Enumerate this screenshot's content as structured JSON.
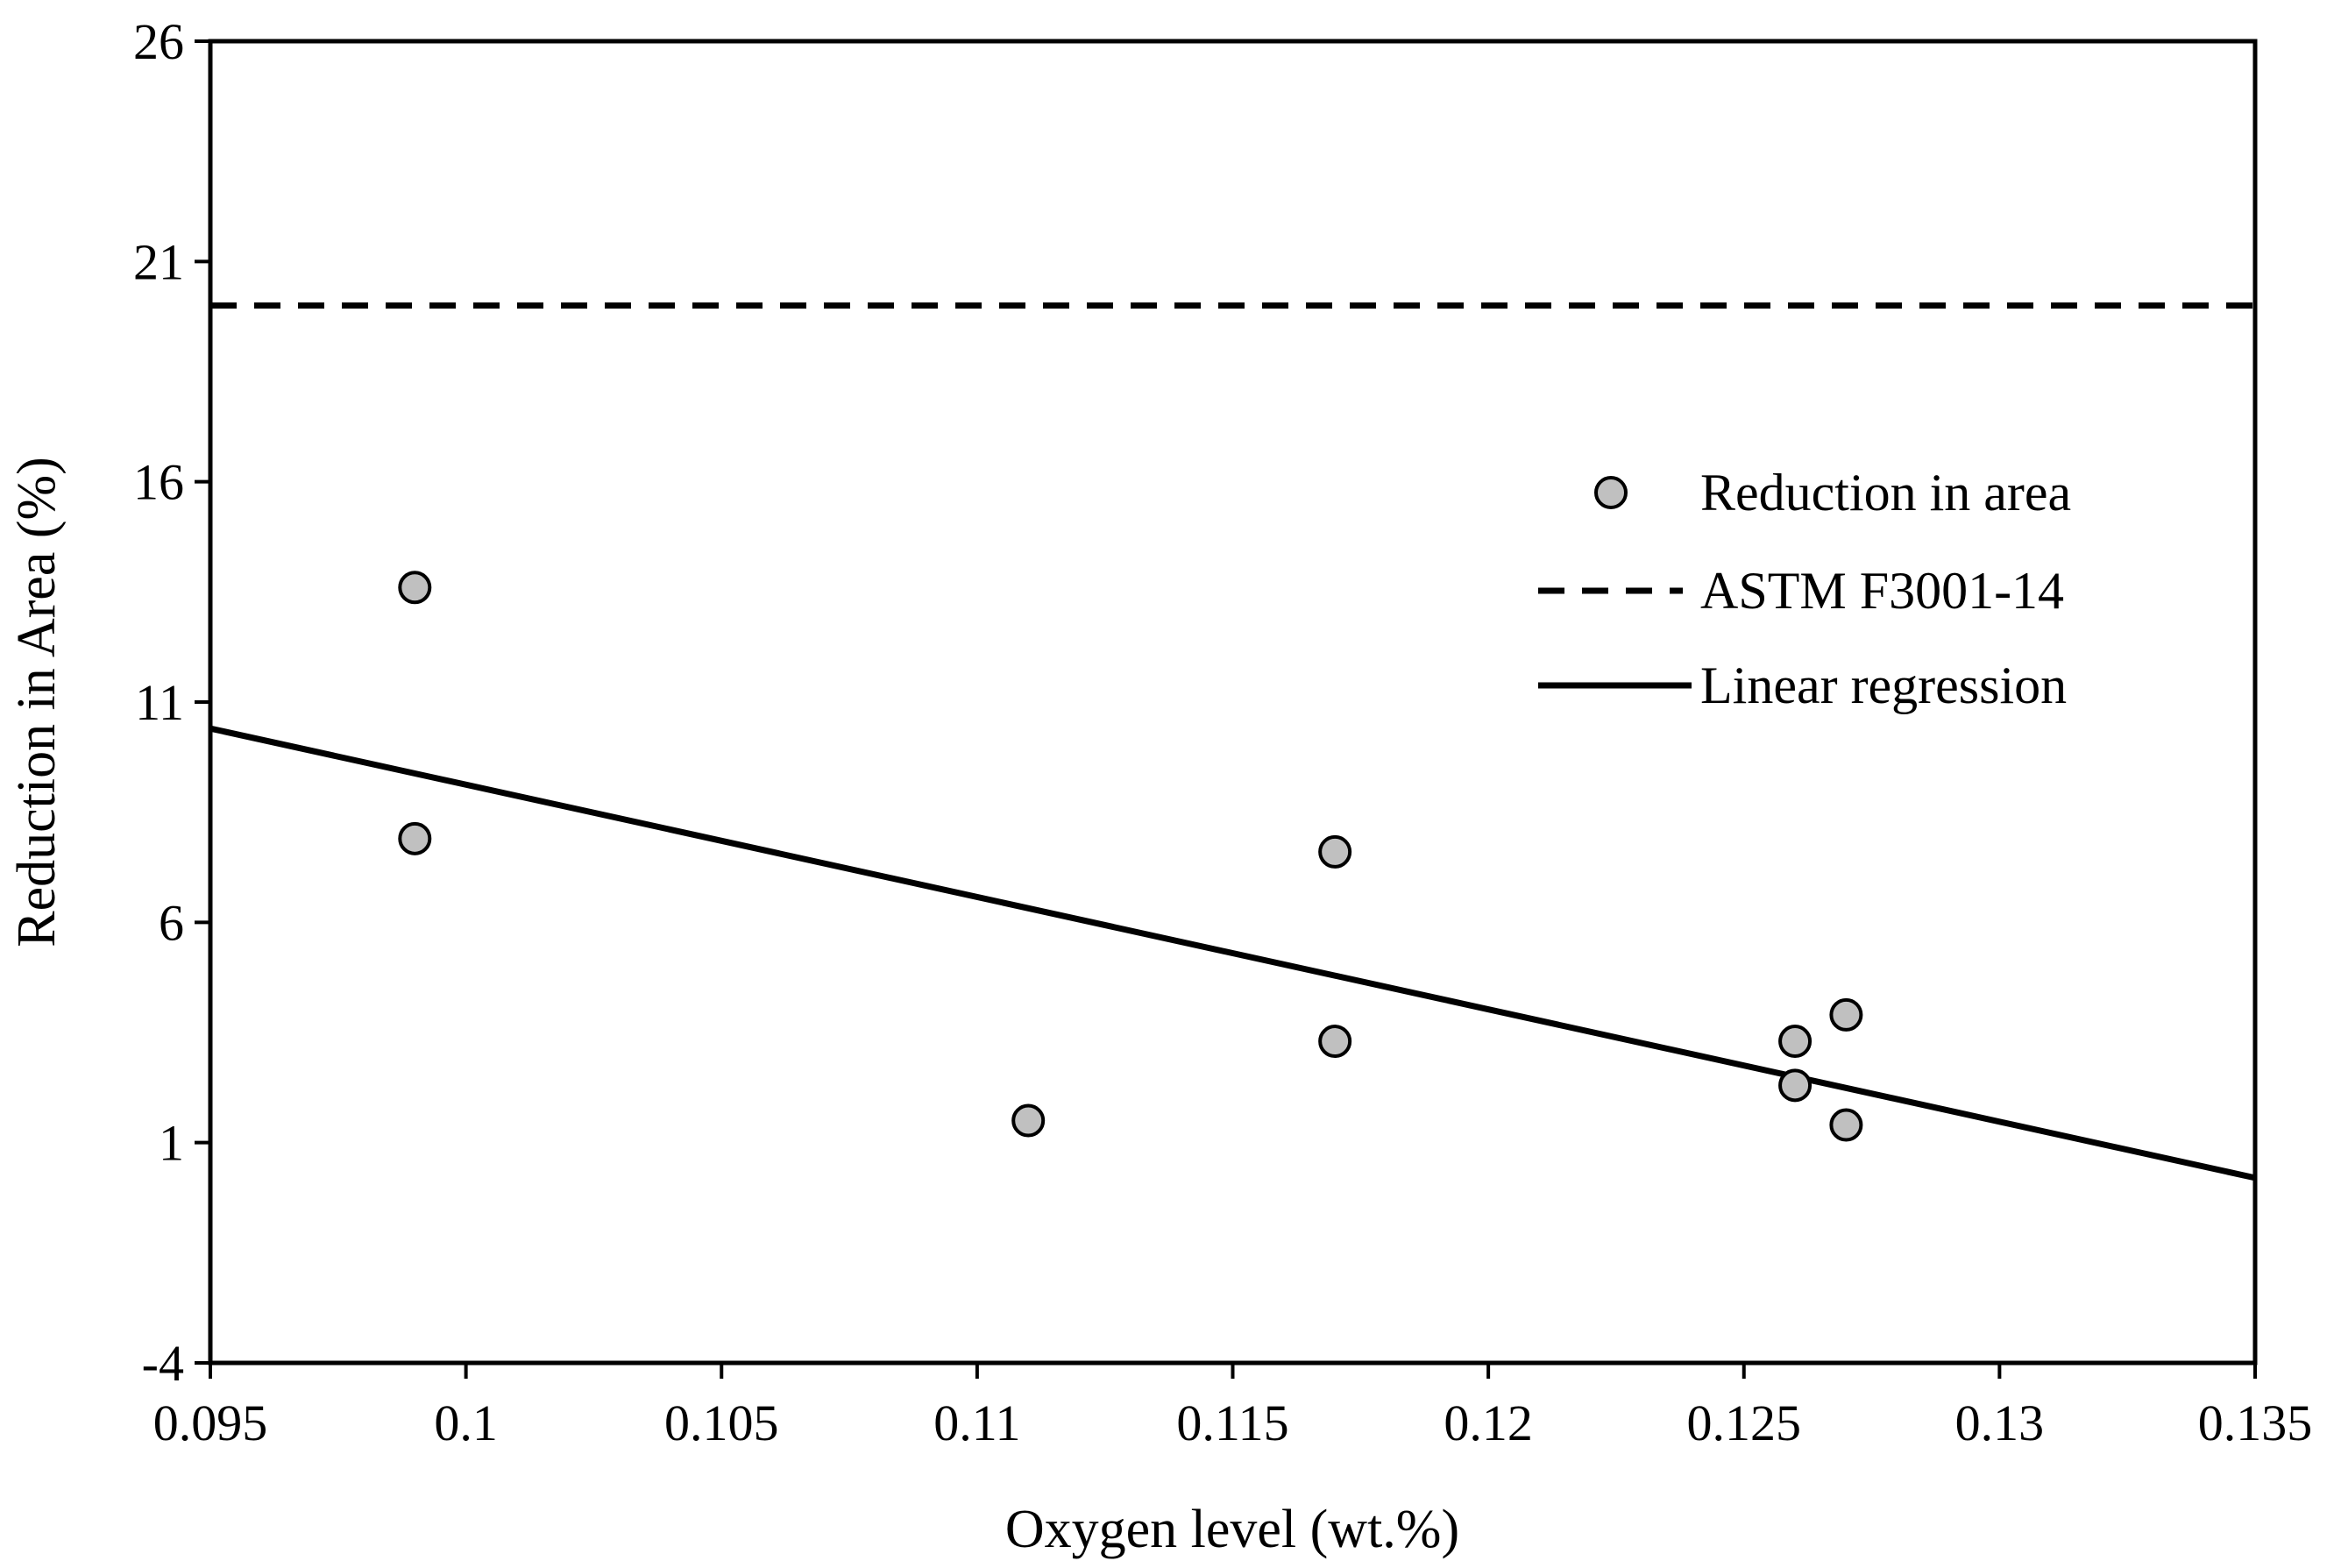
{
  "chart_data": {
    "type": "scatter",
    "xlabel": "Oxygen level (wt.%)",
    "ylabel": "Reduction in Area (%)",
    "xlim": [
      0.095,
      0.135
    ],
    "ylim": [
      -4,
      26
    ],
    "x_ticks": [
      "0.095",
      "0.1",
      "0.105",
      "0.11",
      "0.115",
      "0.12",
      "0.125",
      "0.13",
      "0.135"
    ],
    "y_ticks": [
      "-4",
      "1",
      "6",
      "11",
      "16",
      "21",
      "26"
    ],
    "grid": false,
    "legend_position": "right",
    "series": [
      {
        "name": "Reduction in area",
        "kind": "scatter",
        "marker_color": "#c0c0c0",
        "points": [
          {
            "x": 0.099,
            "y": 13.6
          },
          {
            "x": 0.099,
            "y": 7.9
          },
          {
            "x": 0.111,
            "y": 1.5
          },
          {
            "x": 0.117,
            "y": 7.6
          },
          {
            "x": 0.117,
            "y": 3.3
          },
          {
            "x": 0.126,
            "y": 3.3
          },
          {
            "x": 0.126,
            "y": 2.3
          },
          {
            "x": 0.127,
            "y": 3.9
          },
          {
            "x": 0.127,
            "y": 1.4
          }
        ]
      },
      {
        "name": "ASTM F3001-14",
        "kind": "hline",
        "style": "dashed",
        "y": 20
      },
      {
        "name": "Linear regression",
        "kind": "line",
        "style": "solid",
        "points": [
          {
            "x": 0.095,
            "y": 10.4
          },
          {
            "x": 0.135,
            "y": 0.2
          }
        ]
      }
    ]
  }
}
